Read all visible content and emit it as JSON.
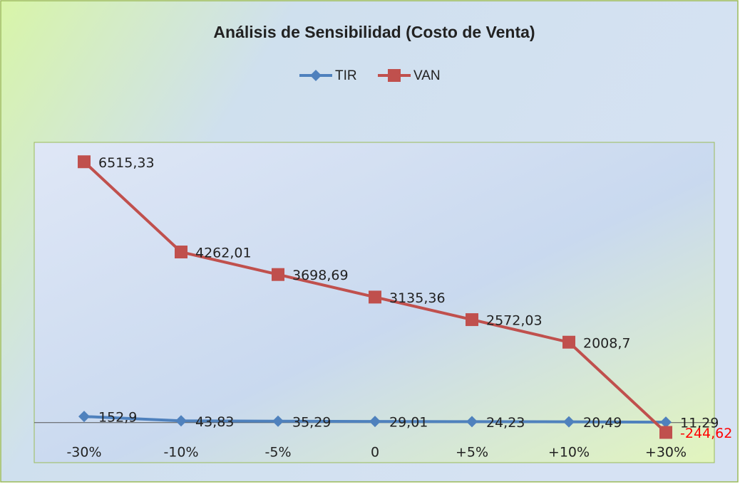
{
  "chart_data": {
    "type": "line",
    "title": "Análisis de Sensibilidad (Costo de Venta)",
    "categories": [
      "-30%",
      "-10%",
      "-5%",
      "0",
      "+5%",
      "+10%",
      "+30%"
    ],
    "series": [
      {
        "name": "TIR",
        "color": "#4f81bd",
        "marker": "diamond",
        "values": [
          152.9,
          43.83,
          35.29,
          29.01,
          24.23,
          20.49,
          11.29
        ],
        "value_labels": [
          "152,9",
          "43,83",
          "35,29",
          "29,01",
          "24,23",
          "20,49",
          "11,29"
        ]
      },
      {
        "name": "VAN",
        "color": "#c0504d",
        "marker": "square",
        "values": [
          6515.33,
          4262.01,
          3698.69,
          3135.36,
          2572.03,
          2008.7,
          -244.62
        ],
        "value_labels": [
          "6515,33",
          "4262,01",
          "3698,69",
          "3135,36",
          "2572,03",
          "2008,7",
          "-244,62"
        ]
      }
    ],
    "ylim": [
      -1000,
      7000
    ],
    "legend": "top"
  }
}
